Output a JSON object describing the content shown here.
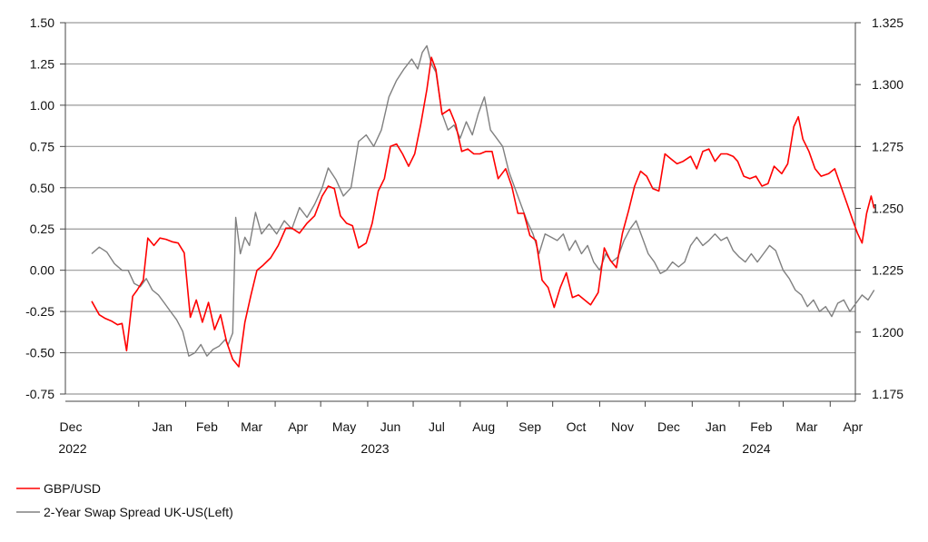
{
  "chart_data": {
    "type": "line",
    "x_axis": {
      "months": [
        "Dec",
        "Jan",
        "Feb",
        "Mar",
        "Apr",
        "May",
        "Jun",
        "Jul",
        "Aug",
        "Sep",
        "Oct",
        "Nov",
        "Dec",
        "Jan",
        "Feb",
        "Mar",
        "Apr"
      ],
      "years": [
        "2022",
        "2023",
        "2024"
      ],
      "range": [
        "2022-12-01",
        "2024-04-30"
      ]
    },
    "y_axis_left": {
      "ylim": [
        -0.75,
        1.5
      ],
      "ticks": [
        "-0.75",
        "-0.50",
        "-0.25",
        "0.00",
        "0.25",
        "0.50",
        "0.75",
        "1.00",
        "1.25",
        "1.50"
      ]
    },
    "y_axis_right": {
      "ylim": [
        1.175,
        1.325
      ],
      "ticks": [
        "1.175",
        "1.200",
        "1.225",
        "1.250",
        "1.275",
        "1.300",
        "1.325"
      ]
    },
    "grid": "horizontal",
    "legend": "bottom-left",
    "series": [
      {
        "name": "GBP/USD",
        "axis": "right",
        "color": "#ff0000",
        "points": [
          [
            "2022-12-01",
            1.2125
          ],
          [
            "2022-12-06",
            1.207
          ],
          [
            "2022-12-10",
            1.2055
          ],
          [
            "2022-12-14",
            1.2045
          ],
          [
            "2022-12-18",
            1.203
          ],
          [
            "2022-12-21",
            1.2035
          ],
          [
            "2022-12-24",
            1.1925
          ],
          [
            "2022-12-28",
            1.2145
          ],
          [
            "2022-12-31",
            1.217
          ],
          [
            "2023-01-04",
            1.221
          ],
          [
            "2023-01-07",
            1.238
          ],
          [
            "2023-01-11",
            1.235
          ],
          [
            "2023-01-15",
            1.238
          ],
          [
            "2023-01-19",
            1.2375
          ],
          [
            "2023-01-23",
            1.2365
          ],
          [
            "2023-01-27",
            1.236
          ],
          [
            "2023-01-31",
            1.232
          ],
          [
            "2023-02-04",
            1.206
          ],
          [
            "2023-02-08",
            1.213
          ],
          [
            "2023-02-12",
            1.204
          ],
          [
            "2023-02-16",
            1.212
          ],
          [
            "2023-02-20",
            1.201
          ],
          [
            "2023-02-24",
            1.207
          ],
          [
            "2023-02-28",
            1.196
          ],
          [
            "2023-03-04",
            1.189
          ],
          [
            "2023-03-08",
            1.186
          ],
          [
            "2023-03-12",
            1.204
          ],
          [
            "2023-03-16",
            1.215
          ],
          [
            "2023-03-20",
            1.225
          ],
          [
            "2023-03-24",
            1.227
          ],
          [
            "2023-03-29",
            1.23
          ],
          [
            "2023-04-03",
            1.235
          ],
          [
            "2023-04-08",
            1.242
          ],
          [
            "2023-04-12",
            1.242
          ],
          [
            "2023-04-17",
            1.24
          ],
          [
            "2023-04-22",
            1.244
          ],
          [
            "2023-04-27",
            1.247
          ],
          [
            "2023-05-02",
            1.255
          ],
          [
            "2023-05-06",
            1.259
          ],
          [
            "2023-05-10",
            1.258
          ],
          [
            "2023-05-14",
            1.247
          ],
          [
            "2023-05-18",
            1.244
          ],
          [
            "2023-05-22",
            1.243
          ],
          [
            "2023-05-26",
            1.234
          ],
          [
            "2023-05-31",
            1.236
          ],
          [
            "2023-06-04",
            1.244
          ],
          [
            "2023-06-08",
            1.257
          ],
          [
            "2023-06-12",
            1.262
          ],
          [
            "2023-06-16",
            1.275
          ],
          [
            "2023-06-20",
            1.276
          ],
          [
            "2023-06-24",
            1.272
          ],
          [
            "2023-06-28",
            1.267
          ],
          [
            "2023-07-02",
            1.272
          ],
          [
            "2023-07-06",
            1.284
          ],
          [
            "2023-07-10",
            1.298
          ],
          [
            "2023-07-13",
            1.311
          ],
          [
            "2023-07-16",
            1.306
          ],
          [
            "2023-07-20",
            1.288
          ],
          [
            "2023-07-25",
            1.29
          ],
          [
            "2023-07-29",
            1.284
          ],
          [
            "2023-08-02",
            1.273
          ],
          [
            "2023-08-06",
            1.274
          ],
          [
            "2023-08-10",
            1.272
          ],
          [
            "2023-08-14",
            1.272
          ],
          [
            "2023-08-18",
            1.273
          ],
          [
            "2023-08-22",
            1.273
          ],
          [
            "2023-08-26",
            1.262
          ],
          [
            "2023-08-31",
            1.266
          ],
          [
            "2023-09-04",
            1.259
          ],
          [
            "2023-09-08",
            1.248
          ],
          [
            "2023-09-12",
            1.248
          ],
          [
            "2023-09-16",
            1.239
          ],
          [
            "2023-09-20",
            1.237
          ],
          [
            "2023-09-24",
            1.221
          ],
          [
            "2023-09-28",
            1.218
          ],
          [
            "2023-10-02",
            1.21
          ],
          [
            "2023-10-06",
            1.218
          ],
          [
            "2023-10-10",
            1.224
          ],
          [
            "2023-10-14",
            1.214
          ],
          [
            "2023-10-18",
            1.215
          ],
          [
            "2023-10-22",
            1.213
          ],
          [
            "2023-10-26",
            1.211
          ],
          [
            "2023-10-31",
            1.216
          ],
          [
            "2023-11-04",
            1.234
          ],
          [
            "2023-11-08",
            1.229
          ],
          [
            "2023-11-12",
            1.226
          ],
          [
            "2023-11-16",
            1.24
          ],
          [
            "2023-11-20",
            1.249
          ],
          [
            "2023-11-24",
            1.259
          ],
          [
            "2023-11-28",
            1.265
          ],
          [
            "2023-12-02",
            1.263
          ],
          [
            "2023-12-06",
            1.258
          ],
          [
            "2023-12-10",
            1.257
          ],
          [
            "2023-12-14",
            1.272
          ],
          [
            "2023-12-18",
            1.27
          ],
          [
            "2023-12-22",
            1.268
          ],
          [
            "2023-12-26",
            1.269
          ],
          [
            "2023-12-31",
            1.271
          ],
          [
            "2024-01-04",
            1.266
          ],
          [
            "2024-01-08",
            1.273
          ],
          [
            "2024-01-12",
            1.274
          ],
          [
            "2024-01-16",
            1.269
          ],
          [
            "2024-01-20",
            1.272
          ],
          [
            "2024-01-24",
            1.272
          ],
          [
            "2024-01-28",
            1.271
          ],
          [
            "2024-01-31",
            1.269
          ],
          [
            "2024-02-04",
            1.263
          ],
          [
            "2024-02-08",
            1.262
          ],
          [
            "2024-02-12",
            1.263
          ],
          [
            "2024-02-16",
            1.259
          ],
          [
            "2024-02-20",
            1.26
          ],
          [
            "2024-02-24",
            1.267
          ],
          [
            "2024-02-29",
            1.264
          ],
          [
            "2024-03-04",
            1.268
          ],
          [
            "2024-03-08",
            1.283
          ],
          [
            "2024-03-11",
            1.287
          ],
          [
            "2024-03-14",
            1.278
          ],
          [
            "2024-03-18",
            1.273
          ],
          [
            "2024-03-22",
            1.266
          ],
          [
            "2024-03-26",
            1.263
          ],
          [
            "2024-03-31",
            1.264
          ],
          [
            "2024-04-04",
            1.266
          ],
          [
            "2024-04-08",
            1.259
          ],
          [
            "2024-04-12",
            1.252
          ],
          [
            "2024-04-16",
            1.245
          ],
          [
            "2024-04-19",
            1.24
          ],
          [
            "2024-04-22",
            1.236
          ],
          [
            "2024-04-25",
            1.248
          ],
          [
            "2024-04-28",
            1.255
          ],
          [
            "2024-04-30",
            1.25
          ]
        ]
      },
      {
        "name": "2-Year Swap Spread UK-US(Left)",
        "axis": "left",
        "color": "#808080",
        "points": [
          [
            "2022-12-01",
            0.1
          ],
          [
            "2022-12-06",
            0.14
          ],
          [
            "2022-12-11",
            0.11
          ],
          [
            "2022-12-16",
            0.04
          ],
          [
            "2022-12-21",
            0.0
          ],
          [
            "2022-12-25",
            0.0
          ],
          [
            "2022-12-29",
            -0.08
          ],
          [
            "2023-01-02",
            -0.1
          ],
          [
            "2023-01-06",
            -0.05
          ],
          [
            "2023-01-10",
            -0.12
          ],
          [
            "2023-01-14",
            -0.15
          ],
          [
            "2023-01-18",
            -0.2
          ],
          [
            "2023-01-22",
            -0.25
          ],
          [
            "2023-01-26",
            -0.3
          ],
          [
            "2023-01-30",
            -0.37
          ],
          [
            "2023-02-03",
            -0.52
          ],
          [
            "2023-02-07",
            -0.5
          ],
          [
            "2023-02-11",
            -0.45
          ],
          [
            "2023-02-15",
            -0.52
          ],
          [
            "2023-02-19",
            -0.48
          ],
          [
            "2023-02-23",
            -0.46
          ],
          [
            "2023-02-27",
            -0.42
          ],
          [
            "2023-03-01",
            -0.45
          ],
          [
            "2023-03-04",
            -0.38
          ],
          [
            "2023-03-06",
            0.32
          ],
          [
            "2023-03-09",
            0.1
          ],
          [
            "2023-03-12",
            0.2
          ],
          [
            "2023-03-15",
            0.15
          ],
          [
            "2023-03-19",
            0.35
          ],
          [
            "2023-03-23",
            0.22
          ],
          [
            "2023-03-28",
            0.28
          ],
          [
            "2023-04-02",
            0.22
          ],
          [
            "2023-04-07",
            0.3
          ],
          [
            "2023-04-12",
            0.25
          ],
          [
            "2023-04-17",
            0.38
          ],
          [
            "2023-04-22",
            0.32
          ],
          [
            "2023-04-27",
            0.4
          ],
          [
            "2023-05-02",
            0.5
          ],
          [
            "2023-05-06",
            0.62
          ],
          [
            "2023-05-11",
            0.55
          ],
          [
            "2023-05-16",
            0.45
          ],
          [
            "2023-05-21",
            0.5
          ],
          [
            "2023-05-26",
            0.78
          ],
          [
            "2023-05-31",
            0.82
          ],
          [
            "2023-06-05",
            0.75
          ],
          [
            "2023-06-10",
            0.85
          ],
          [
            "2023-06-15",
            1.05
          ],
          [
            "2023-06-20",
            1.15
          ],
          [
            "2023-06-25",
            1.22
          ],
          [
            "2023-06-30",
            1.28
          ],
          [
            "2023-07-04",
            1.22
          ],
          [
            "2023-07-07",
            1.32
          ],
          [
            "2023-07-10",
            1.36
          ],
          [
            "2023-07-13",
            1.25
          ],
          [
            "2023-07-16",
            1.2
          ],
          [
            "2023-07-20",
            0.95
          ],
          [
            "2023-07-24",
            0.85
          ],
          [
            "2023-07-28",
            0.88
          ],
          [
            "2023-08-01",
            0.8
          ],
          [
            "2023-08-05",
            0.9
          ],
          [
            "2023-08-09",
            0.82
          ],
          [
            "2023-08-13",
            0.95
          ],
          [
            "2023-08-17",
            1.05
          ],
          [
            "2023-08-21",
            0.85
          ],
          [
            "2023-08-25",
            0.8
          ],
          [
            "2023-08-29",
            0.75
          ],
          [
            "2023-09-02",
            0.6
          ],
          [
            "2023-09-06",
            0.5
          ],
          [
            "2023-09-10",
            0.4
          ],
          [
            "2023-09-14",
            0.3
          ],
          [
            "2023-09-18",
            0.22
          ],
          [
            "2023-09-22",
            0.1
          ],
          [
            "2023-09-26",
            0.22
          ],
          [
            "2023-09-30",
            0.2
          ],
          [
            "2023-10-04",
            0.18
          ],
          [
            "2023-10-08",
            0.22
          ],
          [
            "2023-10-12",
            0.12
          ],
          [
            "2023-10-16",
            0.18
          ],
          [
            "2023-10-20",
            0.1
          ],
          [
            "2023-10-24",
            0.15
          ],
          [
            "2023-10-28",
            0.05
          ],
          [
            "2023-11-01",
            0.0
          ],
          [
            "2023-11-05",
            0.1
          ],
          [
            "2023-11-09",
            0.05
          ],
          [
            "2023-11-13",
            0.08
          ],
          [
            "2023-11-17",
            0.18
          ],
          [
            "2023-11-21",
            0.25
          ],
          [
            "2023-11-25",
            0.3
          ],
          [
            "2023-11-29",
            0.2
          ],
          [
            "2023-12-03",
            0.1
          ],
          [
            "2023-12-07",
            0.05
          ],
          [
            "2023-12-11",
            -0.02
          ],
          [
            "2023-12-15",
            0.0
          ],
          [
            "2023-12-19",
            0.05
          ],
          [
            "2023-12-23",
            0.02
          ],
          [
            "2023-12-27",
            0.05
          ],
          [
            "2023-12-31",
            0.15
          ],
          [
            "2024-01-04",
            0.2
          ],
          [
            "2024-01-08",
            0.15
          ],
          [
            "2024-01-12",
            0.18
          ],
          [
            "2024-01-16",
            0.22
          ],
          [
            "2024-01-20",
            0.18
          ],
          [
            "2024-01-24",
            0.2
          ],
          [
            "2024-01-28",
            0.12
          ],
          [
            "2024-02-01",
            0.08
          ],
          [
            "2024-02-05",
            0.05
          ],
          [
            "2024-02-09",
            0.1
          ],
          [
            "2024-02-13",
            0.05
          ],
          [
            "2024-02-17",
            0.1
          ],
          [
            "2024-02-21",
            0.15
          ],
          [
            "2024-02-25",
            0.12
          ],
          [
            "2024-03-01",
            0.0
          ],
          [
            "2024-03-05",
            -0.05
          ],
          [
            "2024-03-09",
            -0.12
          ],
          [
            "2024-03-13",
            -0.15
          ],
          [
            "2024-03-17",
            -0.22
          ],
          [
            "2024-03-21",
            -0.18
          ],
          [
            "2024-03-25",
            -0.25
          ],
          [
            "2024-03-29",
            -0.22
          ],
          [
            "2024-04-02",
            -0.28
          ],
          [
            "2024-04-06",
            -0.2
          ],
          [
            "2024-04-10",
            -0.18
          ],
          [
            "2024-04-14",
            -0.25
          ],
          [
            "2024-04-18",
            -0.2
          ],
          [
            "2024-04-22",
            -0.15
          ],
          [
            "2024-04-26",
            -0.18
          ],
          [
            "2024-04-30",
            -0.12
          ]
        ]
      }
    ]
  }
}
